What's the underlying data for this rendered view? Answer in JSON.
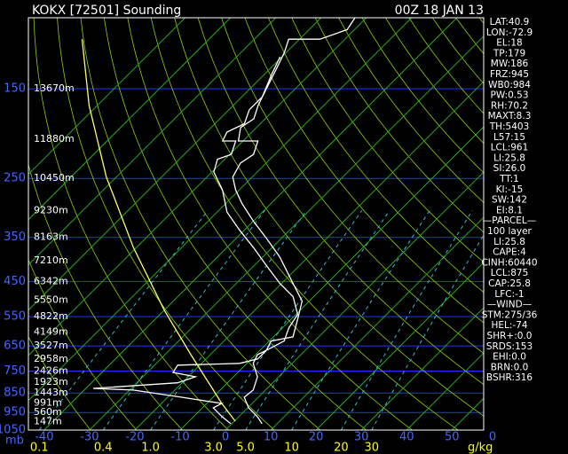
{
  "title": "KOKX [72501] Sounding",
  "time": "00Z 18 JAN 13",
  "chart_data": {
    "type": "skewt",
    "ylabel": "mb",
    "ylim": [
      1050,
      100
    ],
    "yticks": [
      150,
      250,
      350,
      450,
      550,
      650,
      750,
      850,
      950,
      1050
    ],
    "xlim": [
      -43.5,
      57
    ],
    "xticks": [
      -40,
      -30,
      -20,
      -10,
      0,
      10,
      20,
      30,
      40,
      50
    ],
    "corner_label": "0",
    "mixing_ratio_label": "g/kg",
    "mixing_ratio_ticks": [
      0.1,
      0.4,
      {
        "value": 1,
        "label": "1.0"
      },
      {
        "value": 3,
        "label": "3.0"
      },
      {
        "value": 5,
        "label": "5.0"
      },
      10,
      20,
      30
    ],
    "heights": {
      "pressure": [
        150,
        200,
        250,
        300,
        350,
        400,
        450,
        500,
        550,
        600,
        650,
        700,
        750,
        800,
        850,
        900,
        950,
        1000
      ],
      "labels": [
        "13670m",
        "11880m",
        "10450m",
        "9230m",
        "8163m",
        "7210m",
        "6342m",
        "5550m",
        "4822m",
        "4149m",
        "3527m",
        "2958m",
        "2426m",
        "1923m",
        "1443m",
        "991m",
        "560m",
        "147m"
      ]
    },
    "series": [
      {
        "color": "#ffffff",
        "pressure": [
          100,
          107,
          113,
          113,
          122,
          135,
          149,
          165,
          178,
          187,
          202,
          202,
          218,
          229,
          248,
          267,
          288,
          319,
          353,
          391,
          455,
          503,
          557,
          617,
          632,
          666,
          683,
          718,
          775,
          836,
          871,
          925,
          973,
          1013
        ],
        "temperature": [
          -62.5,
          -61.6,
          -65.5,
          -72.4,
          -70.4,
          -68.4,
          -66.5,
          -64.5,
          -62.5,
          -63.5,
          -61,
          -56.7,
          -54.7,
          -55.7,
          -54.3,
          -50.8,
          -46.5,
          -40,
          -33.1,
          -26.3,
          -17.5,
          -11.6,
          -8.6,
          -5.7,
          -9.6,
          -8.6,
          -9.6,
          -8.6,
          -4.7,
          -2.7,
          -3.1,
          0.2,
          4.1,
          6.7
        ]
      },
      {
        "color": "#ffffff",
        "pressure": [
          125,
          138,
          157,
          169,
          183,
          192,
          202,
          202,
          218,
          224,
          241,
          267,
          303,
          336,
          371,
          411,
          455,
          491,
          543,
          586,
          632,
          666,
          683,
          700,
          718,
          725,
          756,
          775,
          802,
          828,
          836,
          871,
          902,
          925,
          973,
          1013
        ],
        "temperature": [
          -70.4,
          -68.4,
          -65.5,
          -65.5,
          -63.5,
          -65.5,
          -64.5,
          -61.6,
          -59.6,
          -61.6,
          -59.6,
          -53.7,
          -47.8,
          -41,
          -34.1,
          -27.3,
          -20.4,
          -14.5,
          -9.6,
          -8.6,
          -6.7,
          -8.6,
          -8.6,
          -8.6,
          -11.6,
          -24.9,
          -24.3,
          -18.4,
          -21,
          -38.4,
          -29.2,
          -16.9,
          -6.7,
          -7.6,
          -3.7,
          -0.2
        ]
      },
      {
        "color": "#ffff66",
        "pressure": [
          113,
          165,
          248,
          371,
          530,
          683,
          902,
          998
        ],
        "temperature": [
          -118,
          -101.8,
          -82.2,
          -60.6,
          -40,
          -24.3,
          -6.7,
          0.2
        ]
      }
    ],
    "indices": [
      "LAT:40.9",
      "LON:-72.9",
      "EL:18",
      "TP:179",
      "MW:186",
      "FRZ:945",
      "WB0:984",
      "PW:0.53",
      "RH:70.2",
      "MAXT:8.3",
      "TH:5403",
      "L57:15",
      "LCL:961",
      "LI:25.8",
      "SI:26.0",
      "TT:1",
      "KI:-15",
      "SW:142",
      "EI:8.1",
      "—PARCEL—",
      "100 layer",
      "LI:25.8",
      "CAPE:4",
      "CINH:60440",
      "LCL:875",
      "CAP:25.8",
      "LFC:-1",
      "—WIND—",
      "STM:275/36",
      "HEL:-74",
      "SHR+:0.0",
      "SRDS:153",
      "EHI:0.0",
      "BRN:0.0",
      "BSHR:316"
    ]
  }
}
